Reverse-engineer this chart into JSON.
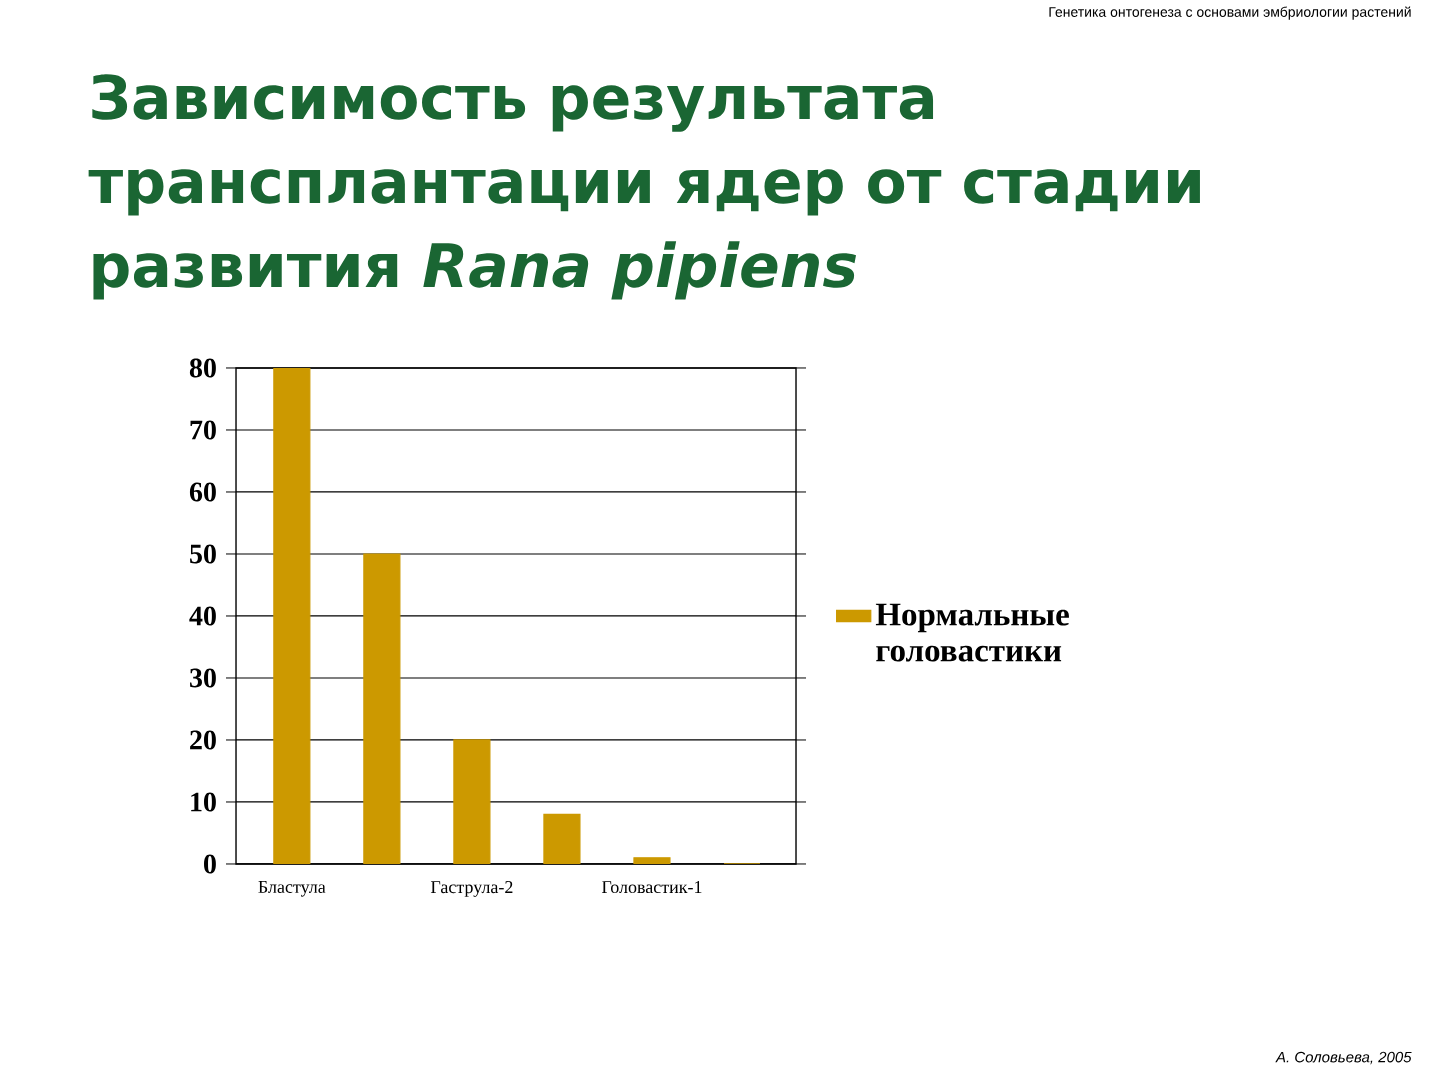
{
  "chart_data": {
    "type": "bar",
    "title": "Зависимость результата трансплантации ядер от стадии развития *Rana pipiens*",
    "annotations": [
      "Генетика онтогенеза с основами эмбриологии растений",
      "А. Соловьева, 2005"
    ],
    "categories": [
      "Бластула",
      null,
      "Гаструла-2",
      null,
      "Головастик-1",
      null
    ],
    "series": [
      {
        "name": "Нормальные головастики",
        "color": "#cc9900",
        "values": [
          80,
          50,
          20,
          8,
          1,
          0
        ]
      }
    ],
    "ylim": [
      0,
      80
    ],
    "yticks": [
      0,
      10,
      20,
      30,
      40,
      50,
      60,
      70,
      80
    ],
    "grid": "y",
    "legend": "right"
  }
}
